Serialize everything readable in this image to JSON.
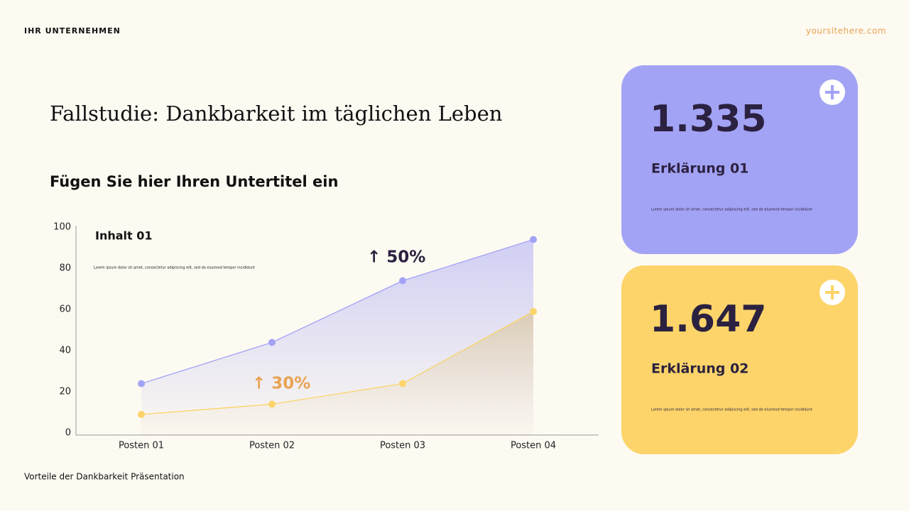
{
  "header": {
    "company": "IHR UNTERNEHMEN",
    "website": "yoursitehere.com"
  },
  "title": "Fallstudie: Dankbarkeit im täglichen Leben",
  "subtitle": "Fügen Sie hier Ihren Untertitel ein",
  "chart_data": {
    "type": "line",
    "categories": [
      "Posten 01",
      "Posten 02",
      "Posten 03",
      "Posten 04"
    ],
    "series": [
      {
        "color": "#a3a3f5",
        "values": [
          25,
          45,
          75,
          95
        ]
      },
      {
        "color": "#fcd469",
        "values": [
          10,
          15,
          25,
          60
        ]
      }
    ],
    "ylim": [
      0,
      100
    ],
    "yticks": [
      0,
      20,
      40,
      60,
      80,
      100
    ],
    "grid": false,
    "annotations": [
      "Inhalt 01",
      "Lorem ipsum dolor sit amet, consectetur adipiscing elit, sed do eiusmod tempor incididunt",
      "↑ 50%",
      "↑ 30%"
    ]
  },
  "cards": [
    {
      "number": "1.335",
      "label": "Erklärung 01",
      "text": "Lorem ipsum dolor sit amet, consectetur adipiscing elit, sed do eiusmod tempor incididunt"
    },
    {
      "number": "1.647",
      "label": "Erklärung 02",
      "text": "Lorem ipsum dolor sit amet, consectetur adipiscing elit, sed do eiusmod tempor incididunt"
    }
  ],
  "footer": "Vorteile der Dankbarkeit Präsentation"
}
